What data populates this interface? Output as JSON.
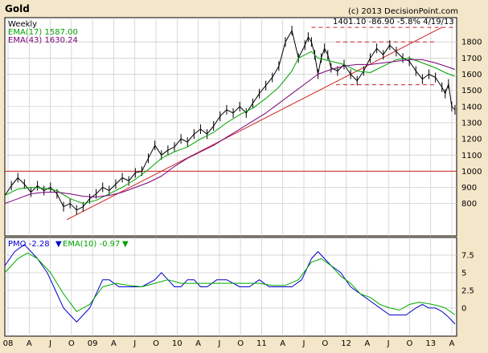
{
  "header": {
    "title": "Gold",
    "copyright": "(c) 2013 DecisionPoint.com",
    "quote": "1401.10  -86.90  -5.8%  4/19/13"
  },
  "legend": {
    "period": "Weekly",
    "ema17": "EMA(17) 1587.00",
    "ema43": "EMA(43) 1630.24",
    "pmo": "PMO  -2.28",
    "pmo_ema": "EMA(10)  -0.97"
  },
  "colors": {
    "background": "#f4e6c8",
    "plot_bg": "#ffffff",
    "price": "#000000",
    "ema17": "#00a000",
    "ema43": "#7a007a",
    "trendline": "#cc2222",
    "pmo": "#0000cc",
    "pmo_ema": "#00aa00",
    "grid": "#c8c8c8"
  },
  "x_ticks": [
    "08",
    "A",
    "J",
    "O",
    "09",
    "A",
    "J",
    "O",
    "10",
    "A",
    "J",
    "O",
    "11",
    "A",
    "J",
    "O",
    "12",
    "A",
    "J",
    "O",
    "13",
    "A"
  ],
  "chart_data": [
    {
      "type": "line",
      "title": "Gold",
      "ylim": [
        600,
        1950
      ],
      "y_ticks": [
        800,
        900,
        1000,
        1100,
        1200,
        1300,
        1400,
        1500,
        1600,
        1700,
        1800
      ],
      "xlim": [
        0,
        277
      ],
      "grid": true,
      "legend_position": "top-left",
      "series": [
        {
          "name": "Weekly",
          "x": [
            0,
            4,
            8,
            12,
            16,
            20,
            24,
            28,
            32,
            36,
            40,
            44,
            48,
            52,
            56,
            60,
            64,
            68,
            72,
            76,
            80,
            84,
            88,
            92,
            96,
            100,
            104,
            108,
            112,
            116,
            120,
            124,
            128,
            132,
            136,
            140,
            144,
            148,
            152,
            156,
            160,
            164,
            168,
            172,
            176,
            180,
            184,
            186,
            188,
            190,
            192,
            194,
            196,
            198,
            200,
            204,
            208,
            212,
            216,
            220,
            224,
            228,
            232,
            236,
            240,
            244,
            248,
            252,
            256,
            260,
            264,
            268,
            270,
            272,
            274,
            276
          ],
          "y": [
            850,
            910,
            960,
            920,
            870,
            910,
            880,
            900,
            860,
            780,
            800,
            760,
            780,
            830,
            860,
            900,
            880,
            920,
            960,
            940,
            990,
            1000,
            1080,
            1160,
            1100,
            1130,
            1150,
            1200,
            1180,
            1230,
            1260,
            1230,
            1280,
            1340,
            1380,
            1360,
            1400,
            1360,
            1420,
            1480,
            1530,
            1580,
            1650,
            1800,
            1870,
            1700,
            1780,
            1830,
            1800,
            1720,
            1600,
            1700,
            1760,
            1720,
            1640,
            1620,
            1660,
            1600,
            1560,
            1620,
            1700,
            1760,
            1720,
            1780,
            1740,
            1700,
            1680,
            1620,
            1570,
            1600,
            1580,
            1520,
            1480,
            1540,
            1400,
            1380
          ]
        },
        {
          "name": "EMA(17)",
          "x": [
            0,
            8,
            16,
            24,
            32,
            40,
            48,
            56,
            64,
            72,
            80,
            88,
            96,
            104,
            112,
            120,
            128,
            136,
            144,
            152,
            160,
            168,
            176,
            180,
            184,
            188,
            192,
            196,
            200,
            208,
            216,
            224,
            232,
            240,
            248,
            256,
            264,
            270,
            276
          ],
          "y": [
            850,
            890,
            900,
            895,
            880,
            830,
            800,
            820,
            860,
            900,
            950,
            1010,
            1080,
            1120,
            1150,
            1200,
            1240,
            1300,
            1350,
            1390,
            1450,
            1520,
            1620,
            1700,
            1720,
            1740,
            1700,
            1690,
            1680,
            1660,
            1620,
            1610,
            1650,
            1690,
            1700,
            1670,
            1640,
            1610,
            1587
          ]
        },
        {
          "name": "EMA(43)",
          "x": [
            0,
            8,
            16,
            24,
            32,
            40,
            48,
            56,
            64,
            72,
            80,
            88,
            96,
            104,
            112,
            120,
            128,
            136,
            144,
            152,
            160,
            168,
            176,
            184,
            192,
            200,
            208,
            216,
            224,
            232,
            240,
            248,
            256,
            264,
            270,
            276
          ],
          "y": [
            800,
            830,
            860,
            870,
            870,
            860,
            845,
            840,
            850,
            870,
            900,
            930,
            970,
            1030,
            1080,
            1120,
            1160,
            1210,
            1260,
            1310,
            1360,
            1420,
            1480,
            1540,
            1600,
            1630,
            1650,
            1660,
            1660,
            1670,
            1680,
            1690,
            1690,
            1670,
            1650,
            1630
          ]
        }
      ],
      "trendlines": [
        {
          "x": [
            38,
            268
          ],
          "y": [
            700,
            1890
          ],
          "style": "solid"
        },
        {
          "x": [
            0,
            277
          ],
          "y": [
            1000,
            1000
          ],
          "style": "solid"
        },
        {
          "x": [
            188,
            277
          ],
          "y": [
            1890,
            1890
          ],
          "style": "dashed"
        },
        {
          "x": [
            203,
            265
          ],
          "y": [
            1800,
            1800
          ],
          "style": "dashed"
        },
        {
          "x": [
            203,
            265
          ],
          "y": [
            1535,
            1535
          ],
          "style": "dashed"
        }
      ]
    },
    {
      "type": "line",
      "title": "PMO",
      "ylim": [
        -4,
        10
      ],
      "y_ticks": [
        0,
        2.5,
        5,
        7.5
      ],
      "xlim": [
        0,
        277
      ],
      "grid": true,
      "legend_position": "top-left",
      "series": [
        {
          "name": "PMO",
          "x": [
            0,
            6,
            12,
            16,
            20,
            26,
            30,
            36,
            40,
            44,
            48,
            52,
            56,
            60,
            64,
            70,
            76,
            84,
            92,
            96,
            100,
            104,
            108,
            112,
            116,
            120,
            124,
            130,
            136,
            144,
            150,
            156,
            162,
            170,
            176,
            182,
            188,
            192,
            196,
            200,
            206,
            212,
            218,
            224,
            230,
            236,
            240,
            246,
            252,
            256,
            260,
            264,
            268,
            272,
            276
          ],
          "y": [
            6,
            8,
            9,
            8,
            7,
            5,
            3,
            0,
            -1,
            -2,
            -1,
            0,
            2,
            4,
            4,
            3,
            3,
            3,
            4,
            5,
            4,
            3,
            3,
            4,
            4,
            3,
            3,
            4,
            4,
            3,
            3,
            4,
            3,
            3,
            3,
            4,
            7,
            8,
            7,
            6,
            5,
            3,
            2,
            1,
            0,
            -1,
            -1,
            -1,
            0,
            0.5,
            0,
            0,
            -0.5,
            -1.3,
            -2.28
          ]
        },
        {
          "name": "EMA(10)",
          "x": [
            0,
            8,
            14,
            20,
            28,
            36,
            44,
            52,
            60,
            68,
            76,
            84,
            92,
            100,
            108,
            116,
            124,
            132,
            140,
            148,
            156,
            164,
            172,
            180,
            188,
            194,
            200,
            206,
            212,
            218,
            224,
            230,
            236,
            242,
            248,
            254,
            260,
            266,
            270,
            276
          ],
          "y": [
            5,
            7,
            7.8,
            7,
            5,
            2,
            -0.5,
            0.5,
            3,
            3.5,
            3.2,
            3,
            3.5,
            4,
            3.5,
            3.5,
            3.5,
            3.5,
            3.5,
            3.5,
            3.5,
            3.2,
            3.2,
            4,
            6.5,
            7,
            6,
            4.5,
            3.5,
            2,
            1.5,
            0.5,
            0,
            -0.3,
            0.5,
            0.8,
            0.6,
            0.3,
            0,
            -0.97
          ]
        }
      ]
    }
  ]
}
